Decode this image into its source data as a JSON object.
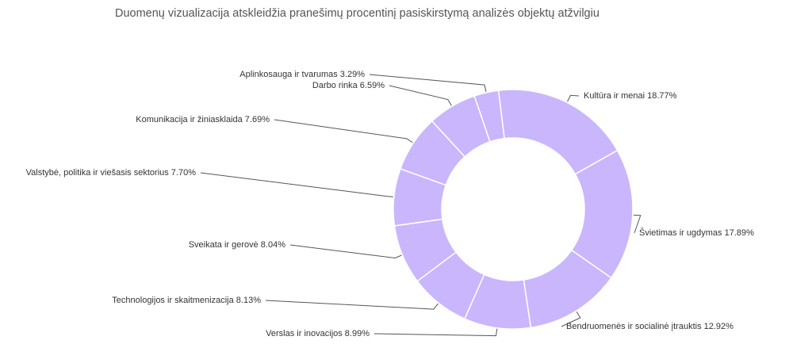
{
  "chart_data": {
    "type": "pie",
    "variant": "donut",
    "title": "Duomenų vizualizacija atskleidžia pranešimų procentinį pasiskirstymą analizės objektų atžvilgiu",
    "slice_color": "#c9b6fc",
    "separator_color": "#ffffff",
    "leader_color": "#555555",
    "label_format": "{category} {value}%",
    "categories": [
      "Kultūra ir menai",
      "Švietimas ir ugdymas",
      "Bendruomenės ir socialinė įtrauktis",
      "Verslas ir inovacijos",
      "Technologijos ir skaitmenizacija",
      "Sveikata ir gerovė",
      "Valstybė, politika ir viešasis sektorius",
      "Komunikacija ir žiniasklaida",
      "Darbo rinka",
      "Aplinkosauga ir tvarumas"
    ],
    "values": [
      18.77,
      17.89,
      12.92,
      8.99,
      8.13,
      8.04,
      7.7,
      7.69,
      6.59,
      3.29
    ]
  }
}
